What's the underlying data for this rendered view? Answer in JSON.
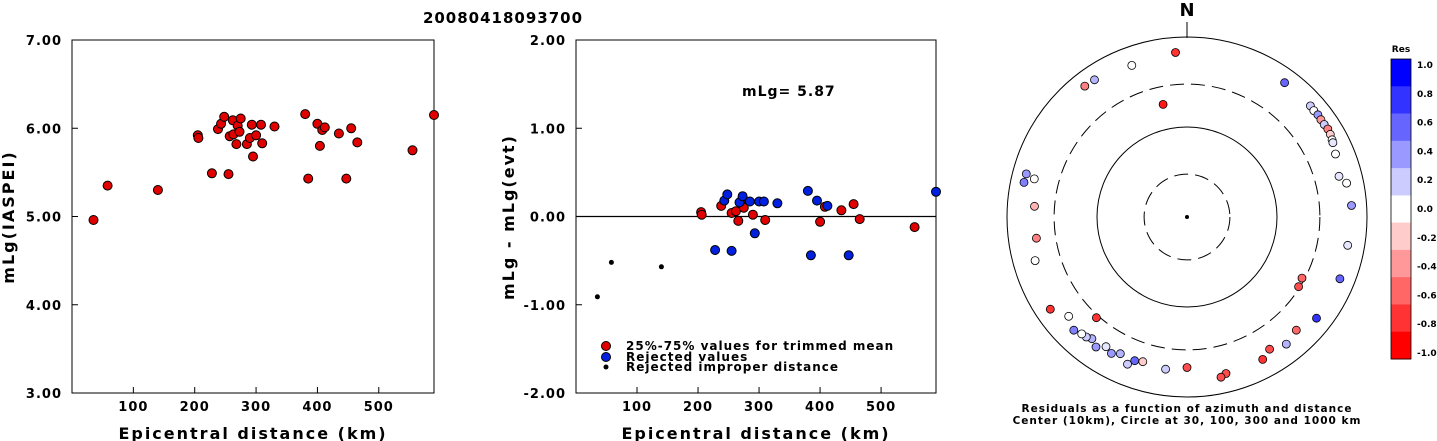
{
  "title": "20080418093700",
  "chart_data": [
    {
      "type": "scatter",
      "xlabel": "Epicentral distance (km)",
      "ylabel": "mLg(IASPEI)",
      "xlim": [
        0,
        590
      ],
      "ylim": [
        3.0,
        7.0
      ],
      "xticks": [
        "100",
        "200",
        "300",
        "400",
        "500"
      ],
      "yticks": [
        "3.00",
        "4.00",
        "5.00",
        "6.00",
        "7.00"
      ],
      "series": [
        {
          "color": "#e00000",
          "points": [
            [
              35,
              4.96
            ],
            [
              58,
              5.35
            ],
            [
              140,
              5.3
            ],
            [
              205,
              5.92
            ],
            [
              206,
              5.89
            ],
            [
              228,
              5.49
            ],
            [
              238,
              5.99
            ],
            [
              243,
              6.05
            ],
            [
              248,
              6.13
            ],
            [
              255,
              5.48
            ],
            [
              257,
              5.91
            ],
            [
              262,
              6.09
            ],
            [
              263,
              5.93
            ],
            [
              268,
              5.82
            ],
            [
              270,
              6.03
            ],
            [
              273,
              5.96
            ],
            [
              275,
              6.11
            ],
            [
              285,
              5.82
            ],
            [
              290,
              5.89
            ],
            [
              293,
              6.04
            ],
            [
              295,
              5.68
            ],
            [
              300,
              5.92
            ],
            [
              308,
              6.04
            ],
            [
              310,
              5.83
            ],
            [
              330,
              6.02
            ],
            [
              380,
              6.16
            ],
            [
              385,
              5.43
            ],
            [
              400,
              6.05
            ],
            [
              404,
              5.8
            ],
            [
              408,
              5.98
            ],
            [
              412,
              6.01
            ],
            [
              435,
              5.94
            ],
            [
              447,
              5.43
            ],
            [
              455,
              6.0
            ],
            [
              465,
              5.84
            ],
            [
              555,
              5.75
            ],
            [
              590,
              6.15
            ]
          ]
        }
      ]
    },
    {
      "type": "scatter",
      "xlabel": "Epicentral distance (km)",
      "ylabel": "mLg - mLg(evt)",
      "xlim": [
        0,
        590
      ],
      "ylim": [
        -2.0,
        2.0
      ],
      "xticks": [
        "100",
        "200",
        "300",
        "400",
        "500"
      ],
      "yticks": [
        "-2.00",
        "-1.00",
        "0.00",
        "1.00",
        "2.00"
      ],
      "annotation": "mLg= 5.87",
      "series": [
        {
          "name": "25%-75% values for trimmed mean",
          "color": "#e00000",
          "points": [
            [
              205,
              0.05
            ],
            [
              206,
              0.02
            ],
            [
              238,
              0.12
            ],
            [
              255,
              0.04
            ],
            [
              262,
              0.06
            ],
            [
              266,
              -0.05
            ],
            [
              270,
              0.17
            ],
            [
              275,
              0.1
            ],
            [
              290,
              0.02
            ],
            [
              310,
              -0.04
            ],
            [
              400,
              -0.06
            ],
            [
              408,
              0.11
            ],
            [
              435,
              0.07
            ],
            [
              455,
              0.14
            ],
            [
              465,
              -0.03
            ],
            [
              555,
              -0.12
            ]
          ]
        },
        {
          "name": "Rejected values",
          "color": "#0020e0",
          "points": [
            [
              228,
              -0.38
            ],
            [
              243,
              0.18
            ],
            [
              248,
              0.25
            ],
            [
              255,
              -0.39
            ],
            [
              268,
              0.16
            ],
            [
              273,
              0.23
            ],
            [
              285,
              0.17
            ],
            [
              293,
              -0.19
            ],
            [
              300,
              0.17
            ],
            [
              308,
              0.17
            ],
            [
              330,
              0.15
            ],
            [
              380,
              0.29
            ],
            [
              385,
              -0.44
            ],
            [
              395,
              0.18
            ],
            [
              412,
              0.12
            ],
            [
              447,
              -0.44
            ],
            [
              590,
              0.28
            ]
          ]
        },
        {
          "name": "Rejected improper distance",
          "color": "#000000",
          "points": [
            [
              35,
              -0.91
            ],
            [
              58,
              -0.52
            ],
            [
              140,
              -0.57
            ]
          ]
        }
      ]
    },
    {
      "type": "scatter",
      "subtype": "polar",
      "north_label": "N",
      "caption": [
        "Residuals as a function of azimuth and distance",
        "Center (10km), Circle at 30, 100, 300 and 1000 km"
      ],
      "colorbar": {
        "title": "Res",
        "ticks": [
          "1.0",
          "0.8",
          "0.6",
          "0.4",
          "0.2",
          "0.0",
          "-0.2",
          "-0.4",
          "-0.6",
          "-0.8",
          "-1.0"
        ],
        "colors": [
          "#0000ff",
          "#3333ff",
          "#6666ff",
          "#9999ff",
          "#ccccff",
          "#ffffff",
          "#ffcccc",
          "#ff9999",
          "#ff6666",
          "#ff3333",
          "#ff0000"
        ]
      },
      "points": [
        {
          "az": 356,
          "dist": 680,
          "res": -0.8
        },
        {
          "az": 36,
          "dist": 700,
          "res": 0.6
        },
        {
          "az": 48,
          "dist": 700,
          "res": 0.2
        },
        {
          "az": 50,
          "dist": 690,
          "res": 0.0
        },
        {
          "az": 52,
          "dist": 700,
          "res": 0.4
        },
        {
          "az": 54,
          "dist": 690,
          "res": -0.4
        },
        {
          "az": 56,
          "dist": 690,
          "res": 0.2
        },
        {
          "az": 58,
          "dist": 700,
          "res": -0.5
        },
        {
          "az": 60,
          "dist": 690,
          "res": -0.2
        },
        {
          "az": 62,
          "dist": 670,
          "res": 0.0
        },
        {
          "az": 63,
          "dist": 660,
          "res": 0.1
        },
        {
          "az": 67,
          "dist": 620,
          "res": 0.0
        },
        {
          "az": 75,
          "dist": 560,
          "res": 0.1
        },
        {
          "az": 78,
          "dist": 650,
          "res": 0.0
        },
        {
          "az": 86,
          "dist": 680,
          "res": 0.4
        },
        {
          "az": 100,
          "dist": 650,
          "res": 0.1
        },
        {
          "az": 112,
          "dist": 680,
          "res": 0.6
        },
        {
          "az": 128,
          "dist": 670,
          "res": 0.8
        },
        {
          "az": 118,
          "dist": 280,
          "res": -0.6
        },
        {
          "az": 122,
          "dist": 290,
          "res": -0.7
        },
        {
          "az": 136,
          "dist": 560,
          "res": -0.6
        },
        {
          "az": 142,
          "dist": 620,
          "res": 0.3
        },
        {
          "az": 148,
          "dist": 540,
          "res": -0.7
        },
        {
          "az": 152,
          "dist": 620,
          "res": -0.8
        },
        {
          "az": 166,
          "dist": 620,
          "res": -0.7
        },
        {
          "az": 168,
          "dist": 660,
          "res": -0.7
        },
        {
          "az": 180,
          "dist": 470,
          "res": -0.7
        },
        {
          "az": 188,
          "dist": 510,
          "res": 0.2
        },
        {
          "az": 197,
          "dist": 480,
          "res": -0.2
        },
        {
          "az": 200,
          "dist": 500,
          "res": 0.6
        },
        {
          "az": 202,
          "dist": 580,
          "res": 0.2
        },
        {
          "az": 206,
          "dist": 490,
          "res": 0.3
        },
        {
          "az": 209,
          "dist": 540,
          "res": 0.4
        },
        {
          "az": 212,
          "dist": 500,
          "res": 0.1
        },
        {
          "az": 215,
          "dist": 580,
          "res": 0.4
        },
        {
          "az": 218,
          "dist": 520,
          "res": 0.3
        },
        {
          "az": 220,
          "dist": 550,
          "res": 0.2
        },
        {
          "az": 222,
          "dist": 560,
          "res": 0.0
        },
        {
          "az": 225,
          "dist": 600,
          "res": 0.5
        },
        {
          "az": 230,
          "dist": 520,
          "res": 0.0
        },
        {
          "az": 222,
          "dist": 320,
          "res": -0.8
        },
        {
          "az": 236,
          "dist": 680,
          "res": -0.8
        },
        {
          "az": 254,
          "dist": 570,
          "res": 0.0
        },
        {
          "az": 262,
          "dist": 490,
          "res": -0.5
        },
        {
          "az": 274,
          "dist": 500,
          "res": -0.3
        },
        {
          "az": 282,
          "dist": 710,
          "res": 0.5
        },
        {
          "az": 285,
          "dist": 705,
          "res": 0.4
        },
        {
          "az": 284,
          "dist": 560,
          "res": 0.0
        },
        {
          "az": 322,
          "dist": 700,
          "res": -0.5
        },
        {
          "az": 326,
          "dist": 690,
          "res": 0.3
        },
        {
          "az": 340,
          "dist": 620,
          "res": 0.0
        },
        {
          "az": 348,
          "dist": 190,
          "res": -0.9
        }
      ]
    }
  ]
}
